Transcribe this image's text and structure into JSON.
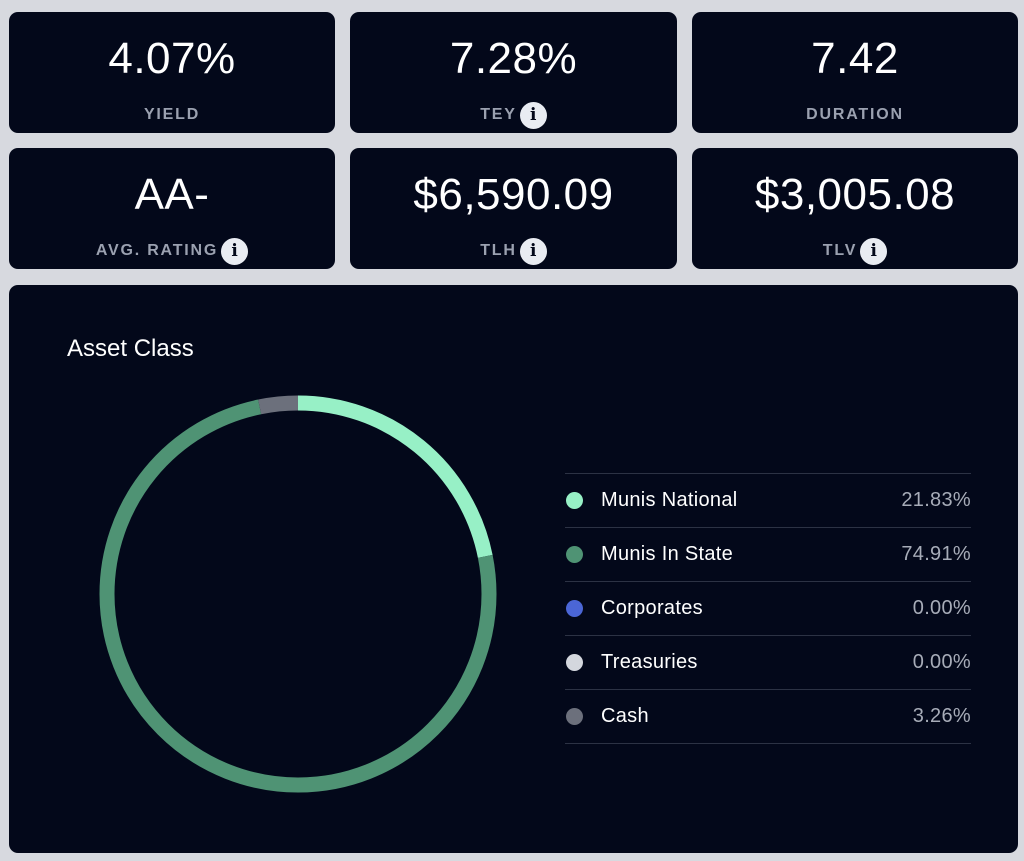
{
  "metrics": [
    {
      "value": "4.07%",
      "label": "YIELD",
      "info": false
    },
    {
      "value": "7.28%",
      "label": "TEY",
      "info": true
    },
    {
      "value": "7.42",
      "label": "DURATION",
      "info": false
    },
    {
      "value": "AA-",
      "label": "AVG. RATING",
      "info": true
    },
    {
      "value": "$6,590.09",
      "label": "TLH",
      "info": true
    },
    {
      "value": "$3,005.08",
      "label": "TLV",
      "info": true
    }
  ],
  "info_icon_glyph": "i",
  "asset_class": {
    "title": "Asset Class",
    "items": [
      {
        "name": "Munis National",
        "percent_text": "21.83%",
        "value": 21.83,
        "color": "#97f0c6"
      },
      {
        "name": "Munis In State",
        "percent_text": "74.91%",
        "value": 74.91,
        "color": "#4f9374"
      },
      {
        "name": "Corporates",
        "percent_text": "0.00%",
        "value": 0.0,
        "color": "#4b66d6"
      },
      {
        "name": "Treasuries",
        "percent_text": "0.00%",
        "value": 0.0,
        "color": "#d4d7de"
      },
      {
        "name": "Cash",
        "percent_text": "3.26%",
        "value": 3.26,
        "color": "#6c707c"
      }
    ]
  },
  "colors": {
    "page_background": "#d7d9df",
    "card_background": "#03081a"
  }
}
